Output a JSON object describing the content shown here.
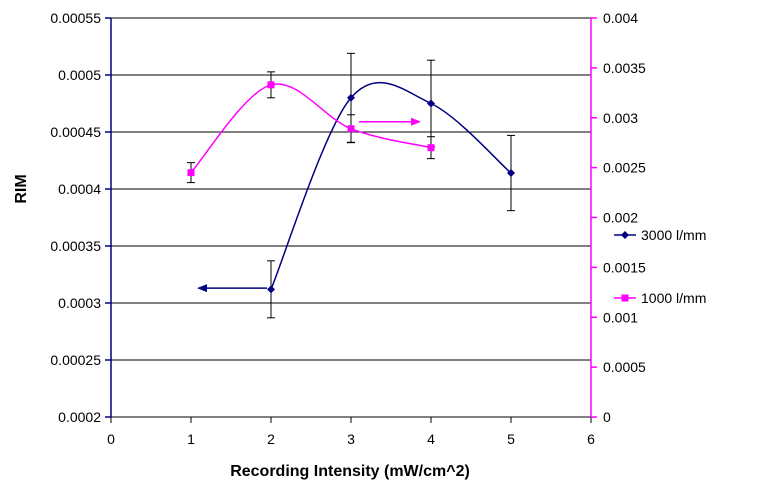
{
  "chart_data": {
    "type": "line",
    "xlabel": "Recording Intensity (mW/cm^2)",
    "ylabel": "RIM",
    "x_ticks": [
      "0",
      "1",
      "2",
      "3",
      "4",
      "5",
      "6"
    ],
    "xlim": [
      0,
      6
    ],
    "y_left_ticks": [
      "0.0002",
      "0.00025",
      "0.0003",
      "0.00035",
      "0.0004",
      "0.00045",
      "0.0005",
      "0.00055"
    ],
    "ylim_left": [
      0.0002,
      0.00055
    ],
    "y_right_ticks": [
      "0",
      "0.0005",
      "0.001",
      "0.0015",
      "0.002",
      "0.0025",
      "0.003",
      "0.0035",
      "0.004"
    ],
    "ylim_right": [
      0,
      0.004
    ],
    "grid": "horizontal",
    "legend_position": "right",
    "series": [
      {
        "name": "3000 l/mm",
        "axis": "left",
        "color": "#000080",
        "marker": "diamond",
        "x": [
          2,
          3,
          4,
          5
        ],
        "y": [
          0.000312,
          0.00048,
          0.000475,
          0.000414
        ],
        "err": [
          2.5e-05,
          3.9e-05,
          3.8e-05,
          3.3e-05
        ]
      },
      {
        "name": "1000 l/mm",
        "axis": "right",
        "color": "#ff00ff",
        "marker": "square",
        "x": [
          1,
          2,
          3,
          4
        ],
        "y": [
          0.00245,
          0.00333,
          0.00289,
          0.0027
        ],
        "err": [
          0.0001,
          0.00013,
          0.00014,
          0.00011
        ]
      }
    ],
    "annotations": [
      {
        "type": "arrow",
        "direction": "left",
        "color": "#000080",
        "x_from": 1.95,
        "x_to": 1.1,
        "y_axis": "left",
        "y": 0.000313
      },
      {
        "type": "arrow",
        "direction": "right",
        "color": "#ff00ff",
        "x_from": 3.1,
        "x_to": 3.85,
        "y_axis": "right",
        "y": 0.00296
      }
    ]
  }
}
